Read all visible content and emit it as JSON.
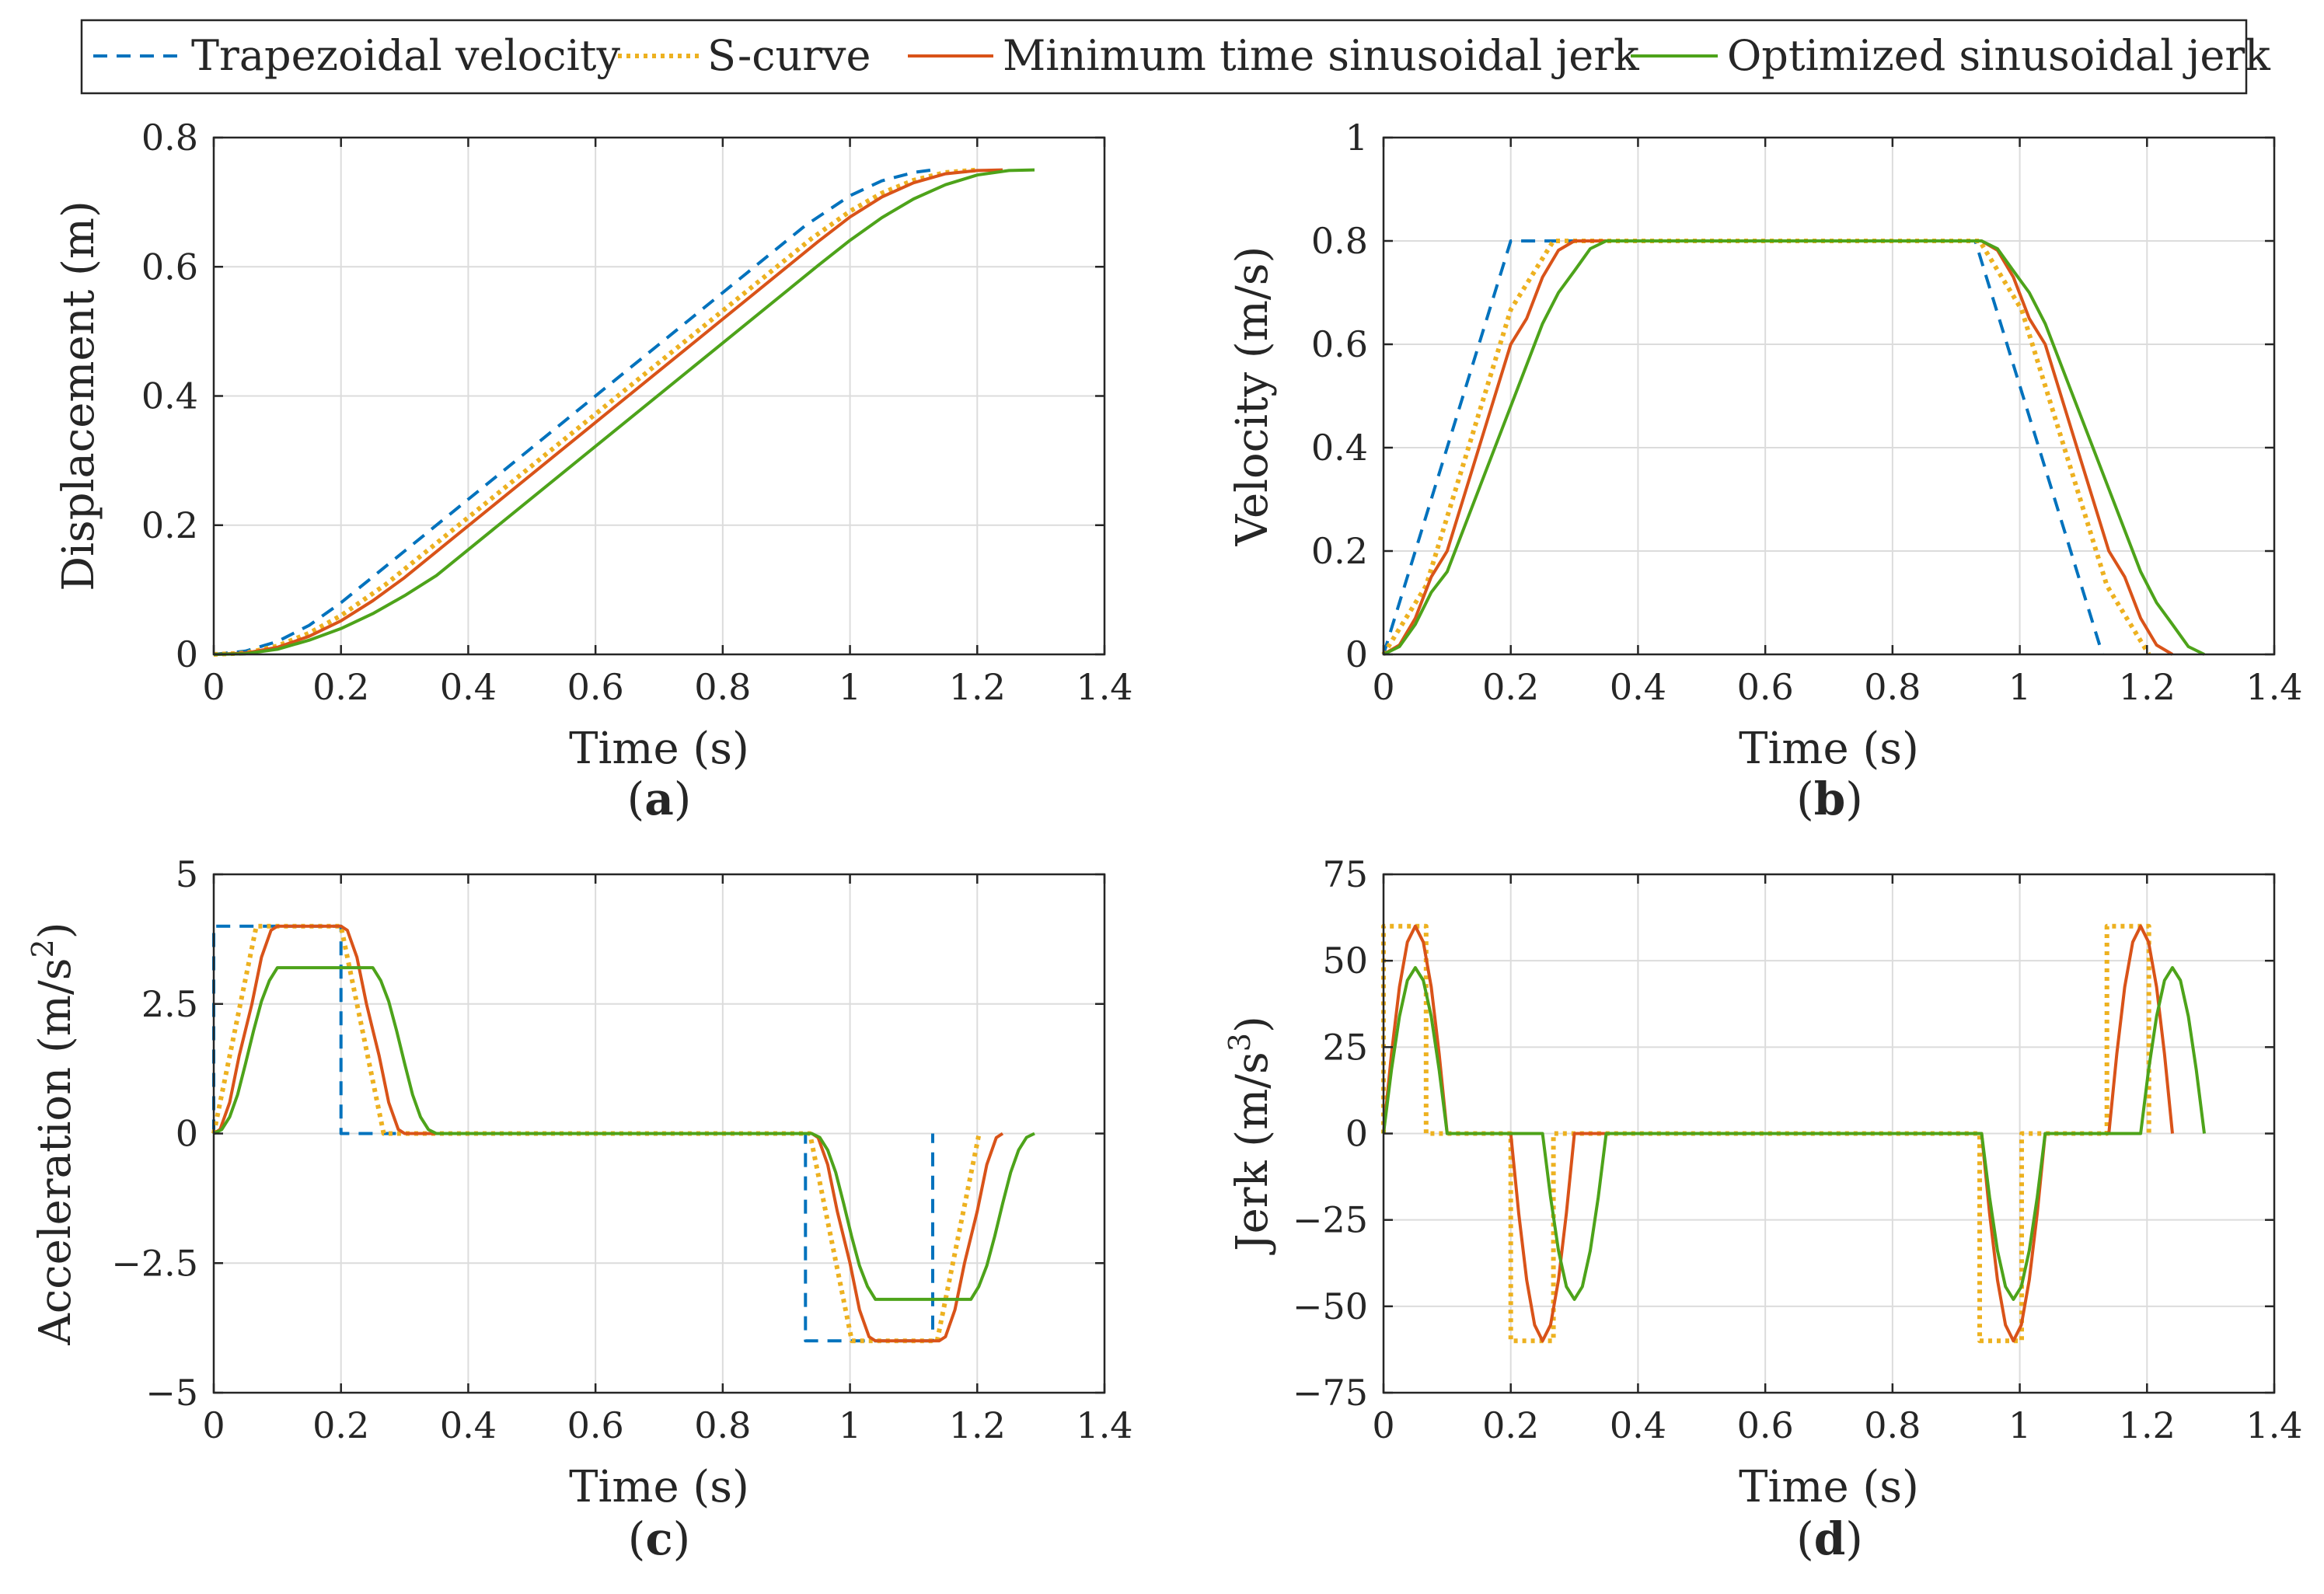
{
  "legend": {
    "entries": [
      "Trapezoidal velocity",
      "S-curve",
      "Minimum time sinusoidal jerk",
      "Optimized sinusoidal jerk"
    ]
  },
  "series_styles": [
    {
      "name": "Trapezoidal velocity",
      "color": "#0072BD",
      "dash": "dashed"
    },
    {
      "name": "S-curve",
      "color": "#EDB120",
      "dash": "dotted"
    },
    {
      "name": "Minimum time sinusoidal jerk",
      "color": "#D95319",
      "dash": "solid"
    },
    {
      "name": "Optimized sinusoidal jerk",
      "color": "#4DA31A",
      "dash": "solid"
    }
  ],
  "chart_data": [
    {
      "id": "a",
      "type": "line",
      "panel_label": "a",
      "xlabel": "Time (s)",
      "ylabel": "Displacement (m)",
      "xlim": [
        0,
        1.4
      ],
      "ylim": [
        0,
        0.8
      ],
      "xticks": [
        "0",
        "0.2",
        "0.4",
        "0.6",
        "0.8",
        "1",
        "1.2",
        "1.4"
      ],
      "yticks": [
        "0",
        "0.2",
        "0.4",
        "0.6",
        "0.8"
      ],
      "grid": true,
      "series": [
        {
          "name": "Trapezoidal velocity",
          "x": [
            0,
            0.05,
            0.1,
            0.15,
            0.2,
            0.3,
            0.4,
            0.5,
            0.6,
            0.7,
            0.8,
            0.9,
            0.93,
            1.0,
            1.05,
            1.1,
            1.13
          ],
          "y": [
            0,
            0.005,
            0.02,
            0.045,
            0.08,
            0.16,
            0.24,
            0.32,
            0.4,
            0.48,
            0.56,
            0.64,
            0.664,
            0.71,
            0.733,
            0.746,
            0.75
          ]
        },
        {
          "name": "S-curve",
          "x": [
            0,
            0.05,
            0.1,
            0.15,
            0.2,
            0.27,
            0.4,
            0.6,
            0.8,
            0.94,
            1.0,
            1.05,
            1.1,
            1.15,
            1.2
          ],
          "y": [
            0,
            0.002,
            0.013,
            0.033,
            0.06,
            0.108,
            0.212,
            0.372,
            0.532,
            0.644,
            0.686,
            0.714,
            0.734,
            0.746,
            0.75
          ]
        },
        {
          "name": "Minimum time sinusoidal jerk",
          "x": [
            0,
            0.05,
            0.1,
            0.15,
            0.2,
            0.25,
            0.3,
            0.4,
            0.6,
            0.8,
            0.95,
            1.0,
            1.05,
            1.1,
            1.15,
            1.2,
            1.24
          ],
          "y": [
            0,
            0.002,
            0.011,
            0.028,
            0.052,
            0.083,
            0.119,
            0.199,
            0.359,
            0.519,
            0.639,
            0.677,
            0.708,
            0.73,
            0.744,
            0.749,
            0.75
          ]
        },
        {
          "name": "Optimized sinusoidal jerk",
          "x": [
            0,
            0.05,
            0.1,
            0.15,
            0.2,
            0.25,
            0.3,
            0.35,
            0.4,
            0.6,
            0.8,
            0.95,
            1.0,
            1.05,
            1.1,
            1.15,
            1.2,
            1.25,
            1.29
          ],
          "y": [
            0,
            0.001,
            0.008,
            0.022,
            0.04,
            0.063,
            0.091,
            0.122,
            0.162,
            0.322,
            0.482,
            0.602,
            0.641,
            0.676,
            0.705,
            0.727,
            0.742,
            0.749,
            0.75
          ]
        }
      ]
    },
    {
      "id": "b",
      "type": "line",
      "panel_label": "b",
      "xlabel": "Time (s)",
      "ylabel": "Velocity (m/s)",
      "xlim": [
        0,
        1.4
      ],
      "ylim": [
        0,
        1
      ],
      "xticks": [
        "0",
        "0.2",
        "0.4",
        "0.6",
        "0.8",
        "1",
        "1.2",
        "1.4"
      ],
      "yticks": [
        "0",
        "0.2",
        "0.4",
        "0.6",
        "0.8",
        "1"
      ],
      "grid": true,
      "series": [
        {
          "name": "Trapezoidal velocity",
          "x": [
            0,
            0.2,
            0.93,
            1.13
          ],
          "y": [
            0,
            0.8,
            0.8,
            0
          ]
        },
        {
          "name": "S-curve",
          "x": [
            0,
            0.067,
            0.2,
            0.267,
            0.937,
            1.003,
            1.137,
            1.203
          ],
          "y": [
            0,
            0.133,
            0.667,
            0.8,
            0.8,
            0.667,
            0.133,
            0
          ]
        },
        {
          "name": "Minimum time sinusoidal jerk",
          "x": [
            0,
            0.025,
            0.05,
            0.075,
            0.1,
            0.15,
            0.2,
            0.225,
            0.25,
            0.275,
            0.3,
            0.94,
            0.965,
            0.99,
            1.015,
            1.04,
            1.09,
            1.14,
            1.165,
            1.19,
            1.215,
            1.24
          ],
          "y": [
            0,
            0.018,
            0.07,
            0.15,
            0.2,
            0.4,
            0.6,
            0.65,
            0.73,
            0.782,
            0.8,
            0.8,
            0.782,
            0.73,
            0.65,
            0.6,
            0.4,
            0.2,
            0.15,
            0.07,
            0.018,
            0
          ]
        },
        {
          "name": "Optimized sinusoidal jerk",
          "x": [
            0,
            0.025,
            0.05,
            0.075,
            0.1,
            0.2,
            0.25,
            0.275,
            0.3,
            0.325,
            0.35,
            0.94,
            0.965,
            0.99,
            1.015,
            1.04,
            1.14,
            1.19,
            1.215,
            1.24,
            1.265,
            1.29
          ],
          "y": [
            0,
            0.015,
            0.058,
            0.12,
            0.16,
            0.48,
            0.64,
            0.7,
            0.742,
            0.785,
            0.8,
            0.8,
            0.785,
            0.742,
            0.7,
            0.64,
            0.32,
            0.16,
            0.1,
            0.058,
            0.015,
            0
          ]
        }
      ]
    },
    {
      "id": "c",
      "type": "line",
      "panel_label": "c",
      "xlabel": "Time (s)",
      "ylabel": "Acceleration (m/s",
      "ylabel_sup": "2",
      "ylabel_tail": ")",
      "xlim": [
        0,
        1.4
      ],
      "ylim": [
        -5,
        5
      ],
      "xticks": [
        "0",
        "0.2",
        "0.4",
        "0.6",
        "0.8",
        "1",
        "1.2",
        "1.4"
      ],
      "yticks": [
        "−5",
        "−2.5",
        "0",
        "2.5",
        "5"
      ],
      "grid": true,
      "series": [
        {
          "name": "Trapezoidal velocity",
          "x": [
            0,
            0,
            0.2,
            0.2,
            0.93,
            0.93,
            1.13,
            1.13
          ],
          "y": [
            0,
            4,
            4,
            0,
            0,
            -4,
            -4,
            0
          ]
        },
        {
          "name": "S-curve",
          "x": [
            0,
            0.067,
            0.2,
            0.267,
            0.937,
            1.003,
            1.137,
            1.203
          ],
          "y": [
            0,
            4,
            4,
            0,
            0,
            -4,
            -4,
            0
          ]
        },
        {
          "name": "Minimum time sinusoidal jerk",
          "x": [
            0,
            0.01,
            0.025,
            0.04,
            0.05,
            0.06,
            0.075,
            0.09,
            0.1,
            0.2,
            0.21,
            0.225,
            0.24,
            0.25,
            0.26,
            0.275,
            0.29,
            0.3,
            0.35,
            0.94,
            0.95,
            0.965,
            0.98,
            0.99,
            1.0,
            1.015,
            1.03,
            1.04,
            1.14,
            1.15,
            1.165,
            1.18,
            1.19,
            1.2,
            1.215,
            1.23,
            1.24
          ],
          "y": [
            0,
            0.08,
            0.6,
            1.5,
            2.0,
            2.5,
            3.4,
            3.92,
            4,
            4,
            3.92,
            3.4,
            2.5,
            2.0,
            1.5,
            0.6,
            0.08,
            0,
            0,
            0,
            -0.08,
            -0.6,
            -1.5,
            -2.0,
            -2.5,
            -3.4,
            -3.92,
            -4,
            -4,
            -3.92,
            -3.4,
            -2.5,
            -2.0,
            -1.5,
            -0.6,
            -0.08,
            0
          ]
        },
        {
          "name": "Optimized sinusoidal jerk",
          "x": [
            0,
            0.0125,
            0.025,
            0.0375,
            0.05,
            0.0625,
            0.075,
            0.0875,
            0.1,
            0.25,
            0.2625,
            0.275,
            0.2875,
            0.3,
            0.3125,
            0.325,
            0.3375,
            0.35,
            0.94,
            0.9525,
            0.965,
            0.9775,
            0.99,
            1.0025,
            1.015,
            1.0275,
            1.04,
            1.19,
            1.2025,
            1.215,
            1.2275,
            1.24,
            1.2525,
            1.265,
            1.2775,
            1.29
          ],
          "y": [
            0,
            0.075,
            0.32,
            0.75,
            1.35,
            1.98,
            2.55,
            2.95,
            3.2,
            3.2,
            2.95,
            2.55,
            1.98,
            1.35,
            0.75,
            0.32,
            0.075,
            0,
            0,
            -0.075,
            -0.32,
            -0.75,
            -1.35,
            -1.98,
            -2.55,
            -2.95,
            -3.2,
            -3.2,
            -2.95,
            -2.55,
            -1.98,
            -1.35,
            -0.75,
            -0.32,
            -0.075,
            0
          ]
        }
      ]
    },
    {
      "id": "d",
      "type": "line",
      "panel_label": "d",
      "xlabel": "Time (s)",
      "ylabel": "Jerk (m/s",
      "ylabel_sup": "3",
      "ylabel_tail": ")",
      "xlim": [
        0,
        1.4
      ],
      "ylim": [
        -75,
        75
      ],
      "xticks": [
        "0",
        "0.2",
        "0.4",
        "0.6",
        "0.8",
        "1",
        "1.2",
        "1.4"
      ],
      "yticks": [
        "−75",
        "−50",
        "−25",
        "0",
        "25",
        "50",
        "75"
      ],
      "grid": true,
      "series": [
        {
          "name": "S-curve",
          "x": [
            0,
            0,
            0.067,
            0.067,
            0.2,
            0.2,
            0.267,
            0.267,
            0.937,
            0.937,
            1.003,
            1.003,
            1.137,
            1.137,
            1.203,
            1.203
          ],
          "y": [
            0,
            60,
            60,
            0,
            0,
            -60,
            -60,
            0,
            0,
            -60,
            -60,
            0,
            0,
            60,
            60,
            0
          ]
        },
        {
          "name": "Minimum time sinusoidal jerk",
          "x": [
            0,
            0.0125,
            0.025,
            0.0375,
            0.05,
            0.0625,
            0.075,
            0.0875,
            0.1,
            0.2,
            0.2125,
            0.225,
            0.2375,
            0.25,
            0.2625,
            0.275,
            0.2875,
            0.3,
            0.94,
            0.9525,
            0.965,
            0.9775,
            0.99,
            1.0025,
            1.015,
            1.0275,
            1.04,
            1.14,
            1.1525,
            1.165,
            1.1775,
            1.19,
            1.2025,
            1.215,
            1.2275,
            1.24
          ],
          "y": [
            0,
            23,
            42.4,
            55.4,
            60,
            55.4,
            42.4,
            23,
            0,
            0,
            -23,
            -42.4,
            -55.4,
            -60,
            -55.4,
            -42.4,
            -23,
            0,
            0,
            -23,
            -42.4,
            -55.4,
            -60,
            -55.4,
            -42.4,
            -23,
            0,
            0,
            23,
            42.4,
            55.4,
            60,
            55.4,
            42.4,
            23,
            0
          ]
        },
        {
          "name": "Optimized sinusoidal jerk",
          "x": [
            0,
            0.0125,
            0.025,
            0.0375,
            0.05,
            0.0625,
            0.075,
            0.0875,
            0.1,
            0.25,
            0.2625,
            0.275,
            0.2875,
            0.3,
            0.3125,
            0.325,
            0.3375,
            0.35,
            0.94,
            0.9525,
            0.965,
            0.9775,
            0.99,
            1.0025,
            1.015,
            1.0275,
            1.04,
            1.19,
            1.2025,
            1.215,
            1.2275,
            1.24,
            1.2525,
            1.265,
            1.2775,
            1.29
          ],
          "y": [
            0,
            18.4,
            33.9,
            44.3,
            48,
            44.3,
            33.9,
            18.4,
            0,
            0,
            -18.4,
            -33.9,
            -44.3,
            -48,
            -44.3,
            -33.9,
            -18.4,
            0,
            0,
            -18.4,
            -33.9,
            -44.3,
            -48,
            -44.3,
            -33.9,
            -18.4,
            0,
            0,
            18.4,
            33.9,
            44.3,
            48,
            44.3,
            33.9,
            18.4,
            0
          ]
        }
      ]
    }
  ]
}
